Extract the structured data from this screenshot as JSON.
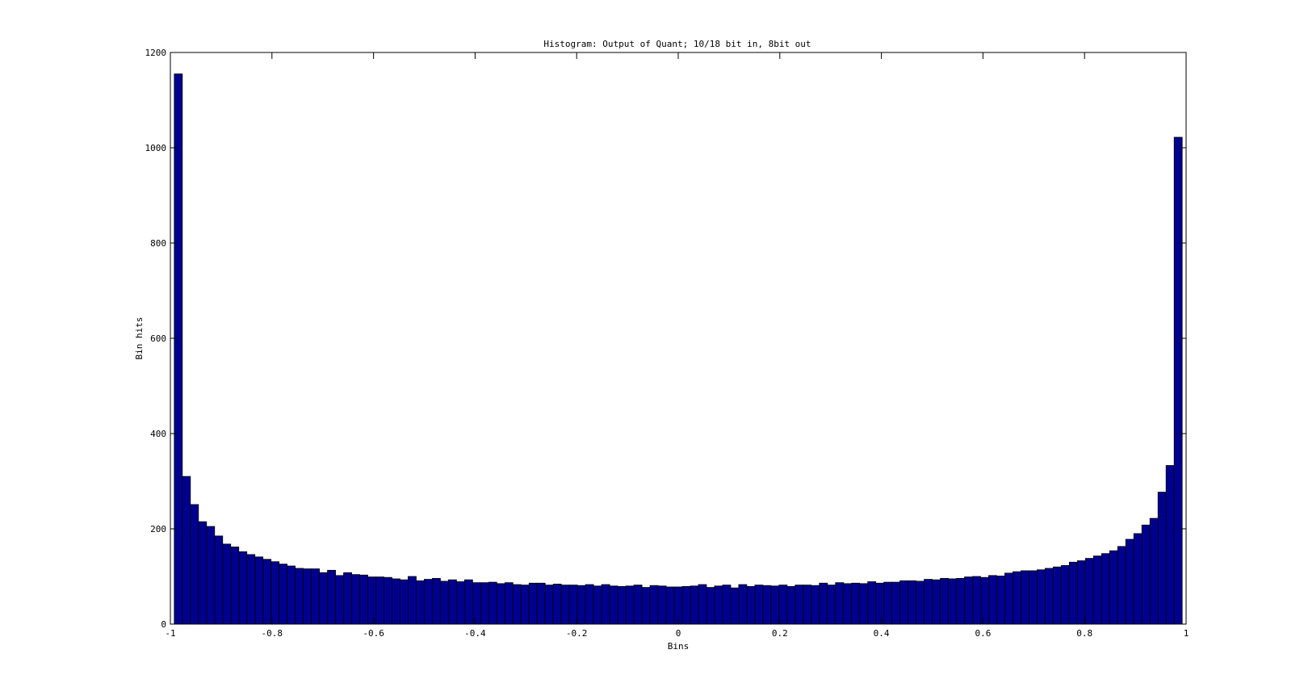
{
  "chart_data": {
    "type": "bar",
    "title": "Histogram: Output of Quant; 10/18 bit in, 8bit out",
    "xlabel": "Bins",
    "ylabel": "Bin hits",
    "xlim": [
      -1,
      1
    ],
    "ylim": [
      0,
      1200
    ],
    "xticks": [
      -1,
      -0.8,
      -0.6,
      -0.4,
      -0.2,
      0,
      0.2,
      0.4,
      0.6,
      0.8,
      1
    ],
    "xtick_labels": [
      "-1",
      "-0.8",
      "-0.6",
      "-0.4",
      "-0.2",
      "0",
      "0.2",
      "0.4",
      "0.6",
      "0.8",
      "1"
    ],
    "yticks": [
      0,
      200,
      400,
      600,
      800,
      1000,
      1200
    ],
    "ytick_labels": [
      "0",
      "200",
      "400",
      "600",
      "800",
      "1000",
      "1200"
    ],
    "grid": false,
    "bar_color": "#00008f",
    "edge_color": "#000000",
    "bin_range": [
      -0.984375,
      0.984375
    ],
    "values": [
      1155,
      310,
      251,
      215,
      205,
      185,
      168,
      162,
      152,
      146,
      141,
      136,
      131,
      126,
      122,
      117,
      116,
      116,
      108,
      113,
      102,
      108,
      104,
      103,
      99,
      99,
      98,
      95,
      93,
      100,
      91,
      94,
      96,
      90,
      93,
      89,
      93,
      87,
      87,
      88,
      85,
      87,
      83,
      82,
      86,
      86,
      82,
      84,
      82,
      82,
      81,
      83,
      80,
      83,
      80,
      79,
      80,
      82,
      77,
      81,
      80,
      78,
      78,
      79,
      80,
      83,
      77,
      80,
      82,
      76,
      83,
      79,
      82,
      81,
      80,
      82,
      79,
      82,
      82,
      81,
      86,
      82,
      87,
      85,
      86,
      85,
      89,
      86,
      88,
      88,
      91,
      91,
      90,
      94,
      93,
      96,
      95,
      96,
      99,
      100,
      98,
      102,
      101,
      107,
      110,
      112,
      112,
      114,
      117,
      120,
      123,
      130,
      133,
      138,
      143,
      148,
      154,
      163,
      178,
      190,
      208,
      222,
      277,
      333,
      1022
    ]
  }
}
